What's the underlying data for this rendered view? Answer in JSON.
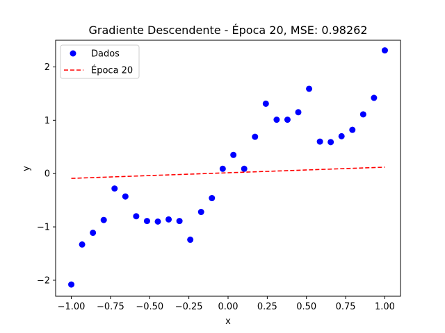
{
  "chart_data": {
    "type": "scatter",
    "title": "Gradiente Descendente - Época 20, MSE: 0.98262",
    "xlabel": "x",
    "ylabel": "y",
    "xlim": [
      -1.1,
      1.1
    ],
    "ylim": [
      -2.3,
      2.5
    ],
    "xticks": [
      -1.0,
      -0.75,
      -0.5,
      -0.25,
      0.0,
      0.25,
      0.5,
      0.75,
      1.0
    ],
    "xtick_labels": [
      "−1.00",
      "−0.75",
      "−0.50",
      "−0.25",
      "0.00",
      "0.25",
      "0.50",
      "0.75",
      "1.00"
    ],
    "yticks": [
      -2,
      -1,
      0,
      1,
      2
    ],
    "ytick_labels": [
      "−2",
      "−1",
      "0",
      "1",
      "2"
    ],
    "legend_position": "top-left",
    "grid": false,
    "series": [
      {
        "name": "Dados",
        "kind": "scatter",
        "color": "#0000ff",
        "x": [
          -1.0,
          -0.931,
          -0.862,
          -0.793,
          -0.724,
          -0.655,
          -0.586,
          -0.517,
          -0.448,
          -0.379,
          -0.31,
          -0.241,
          -0.172,
          -0.103,
          -0.034,
          0.034,
          0.103,
          0.172,
          0.241,
          0.31,
          0.379,
          0.448,
          0.517,
          0.586,
          0.655,
          0.724,
          0.793,
          0.862,
          0.931,
          1.0
        ],
        "y": [
          -2.08,
          -1.33,
          -1.11,
          -0.87,
          -0.28,
          -0.43,
          -0.8,
          -0.89,
          -0.9,
          -0.86,
          -0.89,
          -1.24,
          -0.72,
          -0.46,
          0.09,
          0.35,
          0.09,
          0.69,
          1.31,
          1.01,
          1.01,
          1.15,
          1.59,
          0.6,
          0.59,
          0.7,
          0.82,
          1.11,
          1.42,
          2.31
        ]
      },
      {
        "name": "Época 20",
        "kind": "line",
        "style": "dashed",
        "color": "#ff0000",
        "x": [
          -1.0,
          1.0
        ],
        "y": [
          -0.09,
          0.12
        ]
      }
    ]
  }
}
